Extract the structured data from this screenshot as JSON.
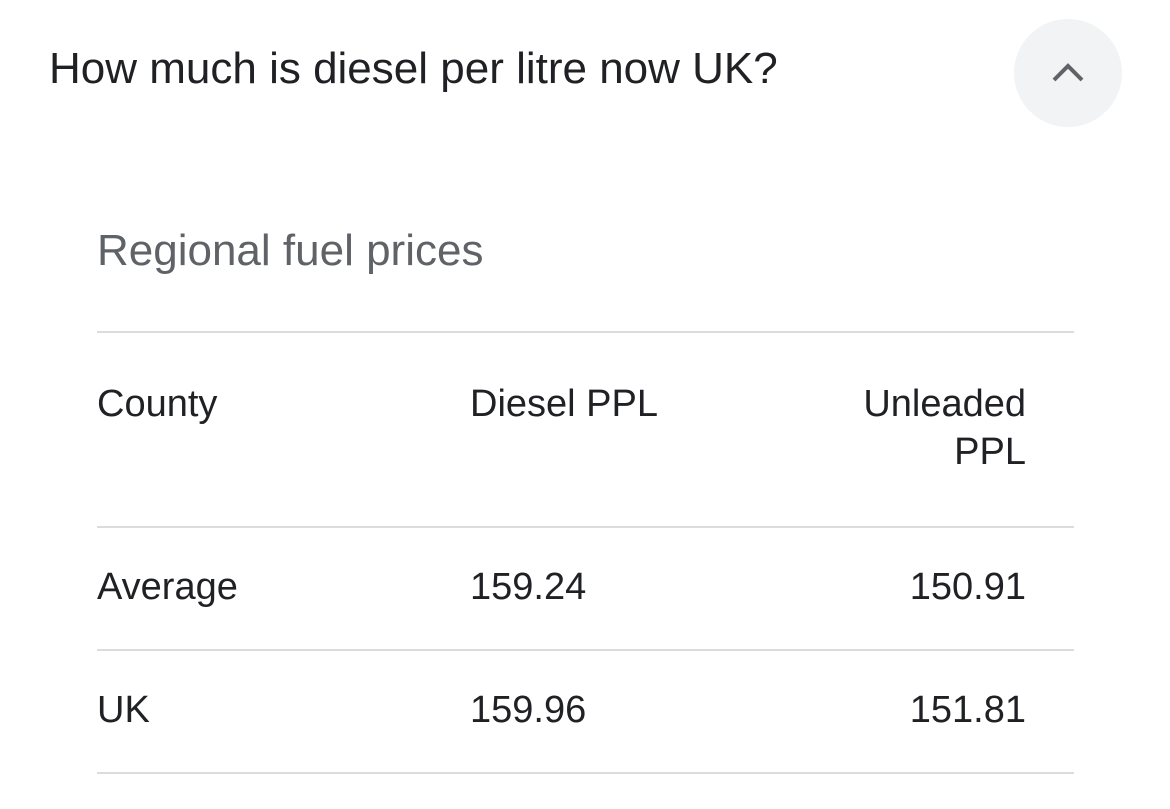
{
  "question": "How much is diesel per litre now UK?",
  "toggle_icon": "chevron-up-icon",
  "table": {
    "title": "Regional fuel prices",
    "headers": [
      "County",
      "Diesel PPL",
      "Unleaded PPL"
    ],
    "rows": [
      [
        "Average",
        "159.24",
        "150.91"
      ],
      [
        "UK",
        "159.96",
        "151.81"
      ]
    ]
  }
}
